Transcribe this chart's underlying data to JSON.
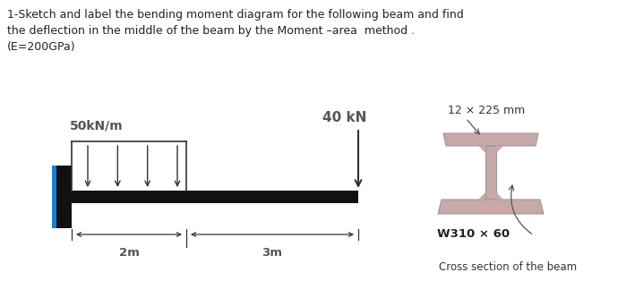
{
  "title_line1": "1-Sketch and label the bending moment diagram for the following beam and find",
  "title_line2": "the deflection in the middle of the beam by the Moment –area  method .",
  "title_line3": "(E=200GPa)",
  "dist_load_label": "50kN/m",
  "point_load_label": "40 kN",
  "cross_section_dim": "12 × 225 mm",
  "section_label": "W310 × 60",
  "cross_section_text": "Cross section of the beam",
  "dim1_label": "2m",
  "dim2_label": "3m",
  "beam_color": "#111111",
  "wall_color_face": "#1a7fd4",
  "wall_color_edge": "#0d5a9e",
  "wall_black_face": "#111111",
  "arrow_color": "#555555",
  "text_color": "#555555",
  "ibeam_color": "#c9a8a8",
  "ibeam_edge": "#999999",
  "background_color": "#ffffff"
}
